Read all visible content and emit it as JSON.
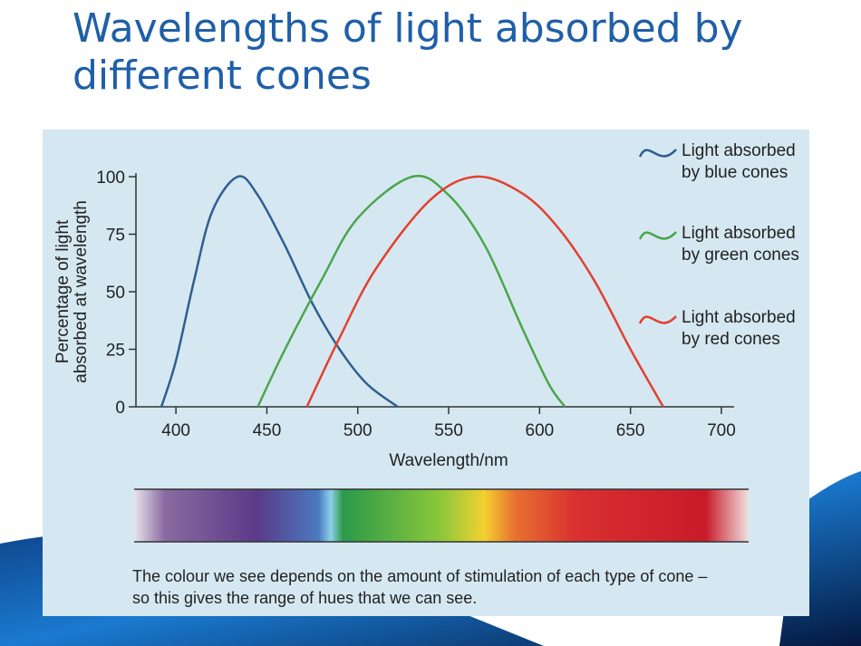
{
  "chart_data": {
    "type": "line",
    "title": "Wavelengths of light absorbed by different cones",
    "y_label": [
      "Percentage of light",
      "absorbed at wavelength"
    ],
    "x_label": "Wavelength/nm",
    "xlim": [
      378,
      706
    ],
    "xticks": [
      400,
      450,
      500,
      550,
      600,
      650,
      700
    ],
    "ylim": [
      0,
      100
    ],
    "yticks": [
      0,
      25,
      50,
      75,
      100
    ],
    "series": [
      {
        "name": "Light absorbed by blue cones",
        "color": "#2f5f8f",
        "x": [
          392,
          400,
          410,
          420,
          434,
          445,
          460,
          475,
          490,
          505,
          522
        ],
        "values": [
          0,
          20,
          55,
          85,
          100,
          92,
          70,
          45,
          25,
          10,
          0
        ]
      },
      {
        "name": "Light absorbed by green cones",
        "color": "#4aa64a",
        "x": [
          445,
          460,
          480,
          500,
          530,
          550,
          570,
          590,
          605,
          614
        ],
        "values": [
          0,
          25,
          55,
          82,
          100,
          92,
          70,
          35,
          10,
          0
        ]
      },
      {
        "name": "Light absorbed by red cones",
        "color": "#e2412f",
        "x": [
          472,
          490,
          510,
          540,
          565,
          590,
          610,
          630,
          650,
          668
        ],
        "values": [
          0,
          30,
          60,
          90,
          100,
          93,
          78,
          55,
          25,
          0
        ]
      }
    ],
    "caption": "The colour we see depends on the amount of stimulation of each type of cone – so this gives the range of hues that we can see."
  }
}
